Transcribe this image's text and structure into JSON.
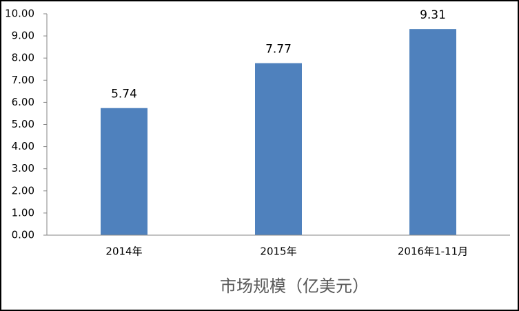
{
  "chart_data": {
    "type": "bar",
    "x_label": "市场规模（亿美元）",
    "categories": [
      "2014年",
      "2015年",
      "2016年1-11月"
    ],
    "values": [
      5.74,
      7.77,
      9.31
    ],
    "color": "#4f81bd",
    "ylim": [
      0,
      10
    ],
    "yticks": [
      {
        "value": 0,
        "label": "0.00"
      },
      {
        "value": 1,
        "label": "1.00"
      },
      {
        "value": 2,
        "label": "2.00"
      },
      {
        "value": 3,
        "label": "3.00"
      },
      {
        "value": 4,
        "label": "4.00"
      },
      {
        "value": 5,
        "label": "5.00"
      },
      {
        "value": 6,
        "label": "6.00"
      },
      {
        "value": 7,
        "label": "7.00"
      },
      {
        "value": 8,
        "label": "8.00"
      },
      {
        "value": 9,
        "label": "9.00"
      },
      {
        "value": 10,
        "label": "10.00"
      }
    ],
    "grid": false
  }
}
